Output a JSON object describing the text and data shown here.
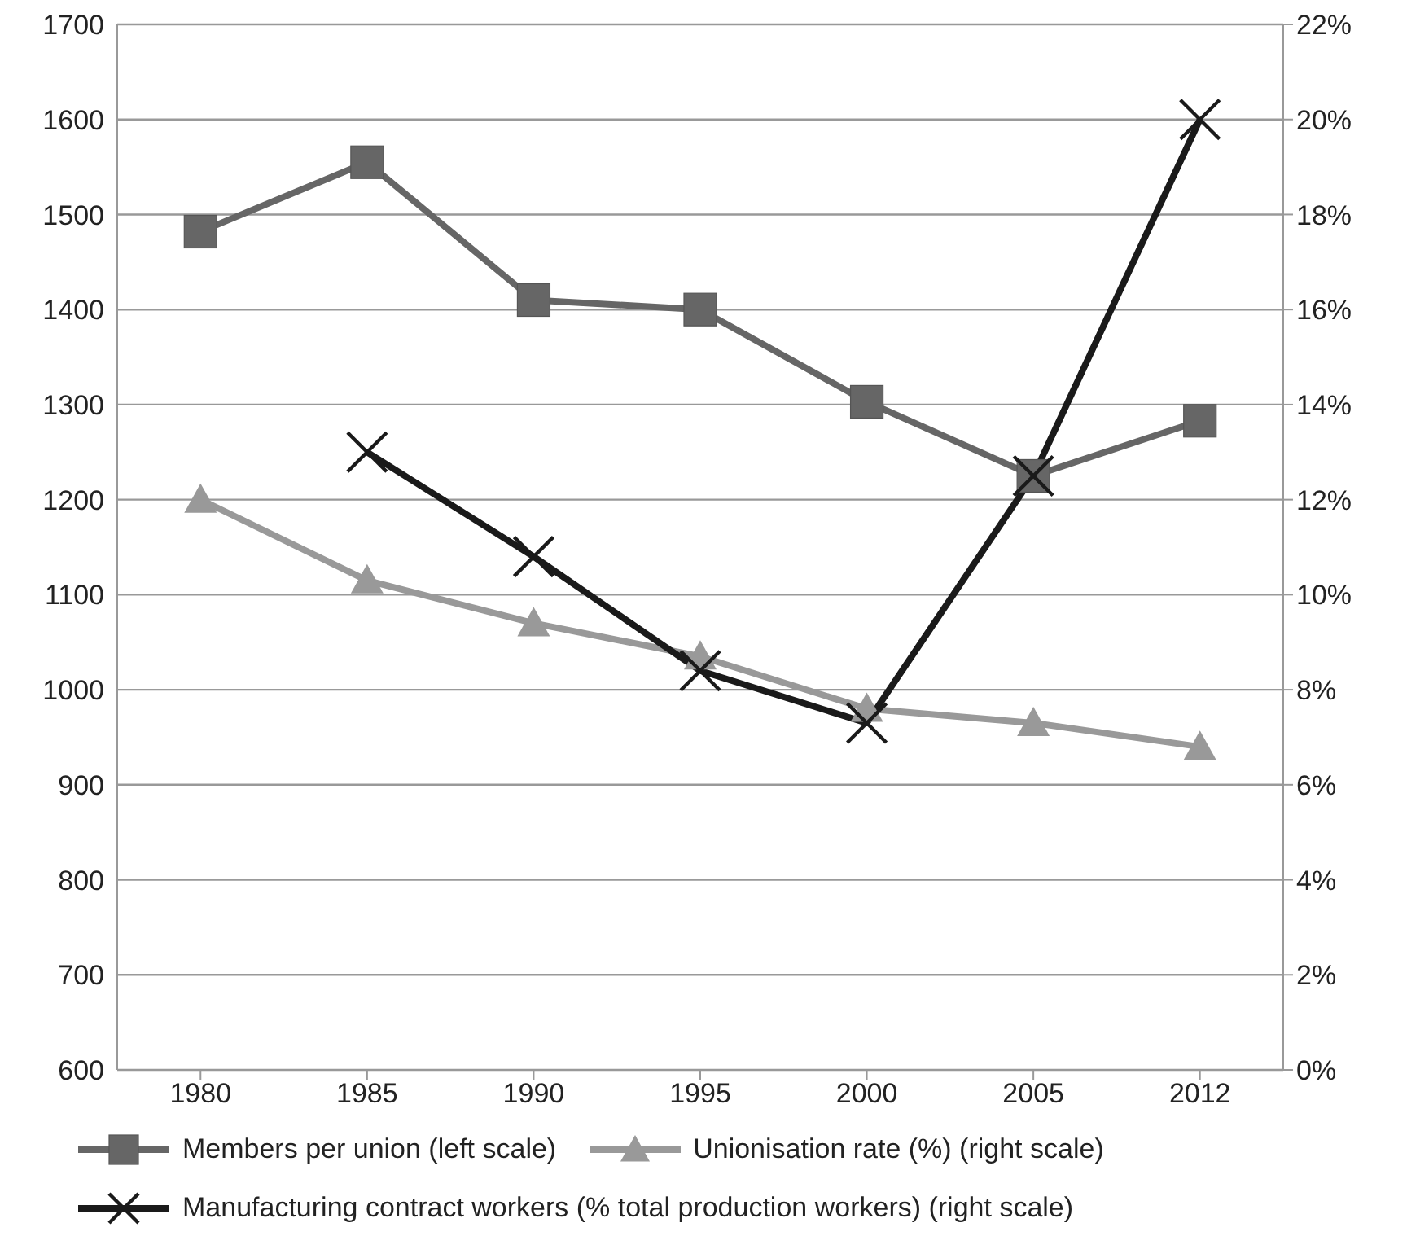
{
  "chart_data": {
    "type": "line",
    "categories": [
      "1980",
      "1985",
      "1990",
      "1995",
      "2000",
      "2005",
      "2012"
    ],
    "series": [
      {
        "name": "Members per union (left scale)",
        "color": "#666666",
        "marker": "square",
        "values": [
          1482,
          1555,
          1410,
          1400,
          1303,
          1225,
          1283
        ]
      },
      {
        "name": "Unionisation rate (%) (right scale)",
        "color": "#999999",
        "marker": "triangle",
        "axis": "y2",
        "values": [
          12.0,
          10.3,
          9.4,
          8.7,
          7.6,
          7.3,
          6.8
        ]
      },
      {
        "name": "Manufacturing contract workers (% total production workers) (right scale)",
        "color": "#1a1a1a",
        "marker": "cross",
        "axis": "y2",
        "values": [
          null,
          13.0,
          10.8,
          8.4,
          7.3,
          12.5,
          20.0
        ]
      }
    ],
    "ylim": [
      600,
      1700
    ],
    "yticks": [
      600,
      700,
      800,
      900,
      1000,
      1100,
      1200,
      1300,
      1400,
      1500,
      1600,
      1700
    ],
    "y2lim": [
      0,
      22
    ],
    "y2ticks": [
      {
        "value": 0,
        "label": "0%"
      },
      {
        "value": 2,
        "label": "2%"
      },
      {
        "value": 4,
        "label": "4%"
      },
      {
        "value": 6,
        "label": "6%"
      },
      {
        "value": 8,
        "label": "8%"
      },
      {
        "value": 10,
        "label": "10%"
      },
      {
        "value": 12,
        "label": "12%"
      },
      {
        "value": 14,
        "label": "14%"
      },
      {
        "value": 16,
        "label": "16%"
      },
      {
        "value": 18,
        "label": "18%"
      },
      {
        "value": 20,
        "label": "20%"
      },
      {
        "value": 22,
        "label": "22%"
      }
    ],
    "grid": "y",
    "legend": "bottom"
  }
}
